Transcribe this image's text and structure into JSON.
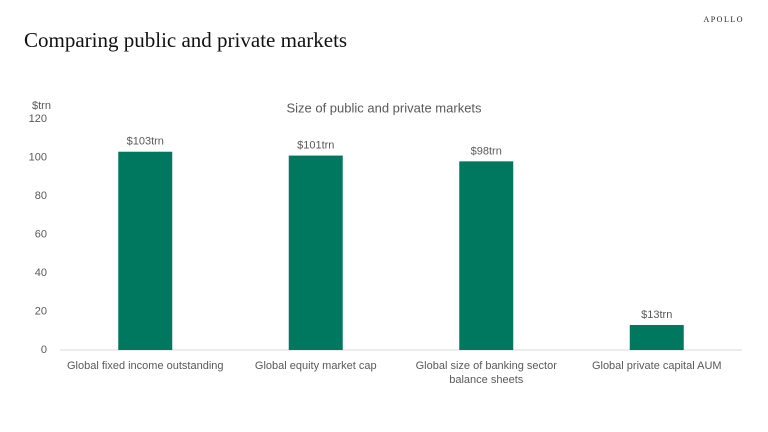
{
  "brand": "APOLLO",
  "title": "Comparing public and private markets",
  "chart_data": {
    "type": "bar",
    "title": "Size of public and private markets",
    "y_axis_label": "$trn",
    "categories": [
      "Global fixed income outstanding",
      "Global equity market cap",
      "Global size of banking sector balance sheets",
      "Global private capital AUM"
    ],
    "values": [
      103,
      101,
      98,
      13
    ],
    "value_labels": [
      "$103trn",
      "$101trn",
      "$98trn",
      "$13trn"
    ],
    "color": "#00785f",
    "ylim": [
      0,
      120
    ],
    "yticks": [
      0,
      20,
      40,
      60,
      80,
      100,
      120
    ],
    "grid": false
  }
}
